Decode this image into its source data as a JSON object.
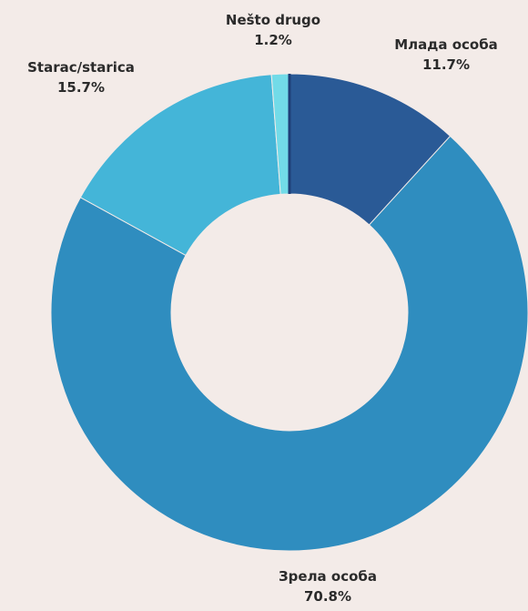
{
  "chart_data": {
    "type": "pie",
    "donut": true,
    "title": "",
    "categories": [
      "Млада особа",
      "Зрела особа",
      "Starac/starica",
      "Nešto drugo"
    ],
    "series": [
      {
        "values": [
          11.7,
          70.8,
          15.7,
          1.2
        ]
      }
    ],
    "value_labels": [
      "11.7%",
      "70.8%",
      "15.7%",
      "1.2%"
    ],
    "colors": [
      "#2a5a96",
      "#2f8dbf",
      "#44b5d8",
      "#72dbe8"
    ],
    "legend": "none",
    "labels_position": "outside slices"
  }
}
